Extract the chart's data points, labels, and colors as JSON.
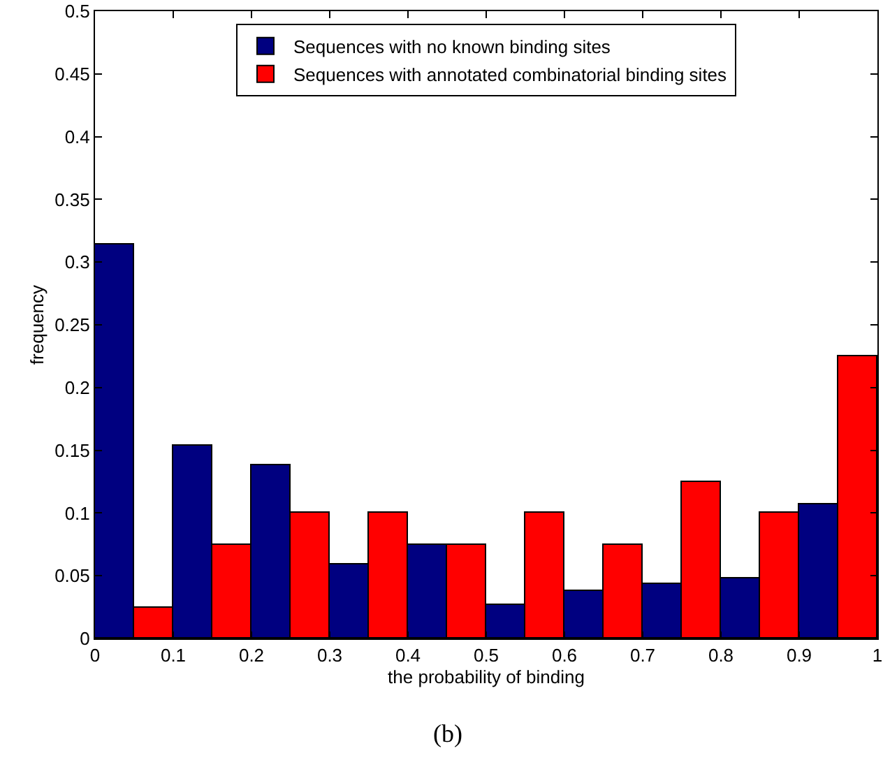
{
  "chart_data": {
    "type": "histogram",
    "xlabel": "the probability of binding",
    "ylabel": "frequency",
    "annotations": [
      "(b)"
    ],
    "bins": [
      0,
      0.1,
      0.2,
      0.3,
      0.4,
      0.5,
      0.6,
      0.7,
      0.8,
      0.9,
      1
    ],
    "series": [
      {
        "name": "Sequences with no known binding sites",
        "color": "#000080",
        "values": [
          0.314,
          0.154,
          0.138,
          0.059,
          0.075,
          0.027,
          0.038,
          0.043,
          0.048,
          0.107
        ]
      },
      {
        "name": "Sequences with annotated combinatorial binding sites",
        "color": "#ff0000",
        "values": [
          0.025,
          0.075,
          0.1,
          0.1,
          0.075,
          0.1,
          0.075,
          0.125,
          0.1,
          0.225
        ]
      }
    ],
    "xlim": [
      0,
      1
    ],
    "xticks": [
      0,
      0.1,
      0.2,
      0.3,
      0.4,
      0.5,
      0.6,
      0.7,
      0.8,
      0.9,
      1
    ],
    "ylim": [
      0,
      0.5
    ],
    "yticks": [
      0,
      0.05,
      0.1,
      0.15,
      0.2,
      0.25,
      0.3,
      0.35,
      0.4,
      0.45,
      0.5
    ],
    "grid": false,
    "legend": "top"
  }
}
